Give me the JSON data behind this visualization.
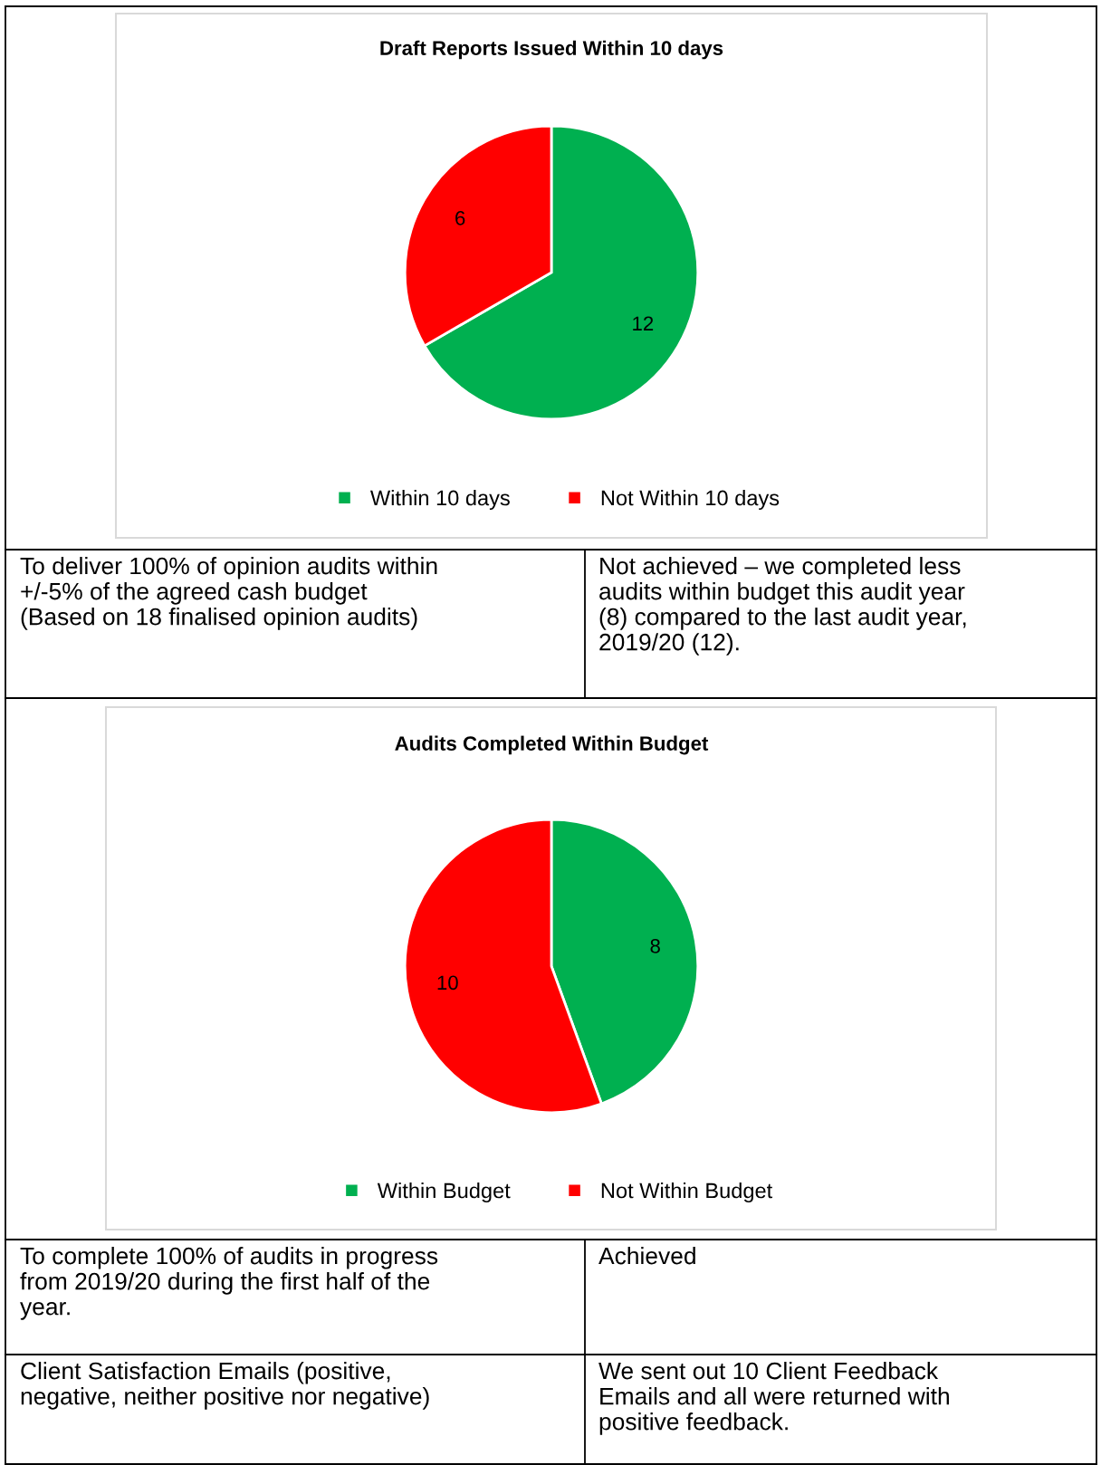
{
  "chart_data": [
    {
      "type": "pie",
      "title": "Draft Reports Issued Within 10 days",
      "categories": [
        "Within 10 days",
        "Not Within 10 days"
      ],
      "values": [
        12,
        6
      ],
      "colors": [
        "#00b050",
        "#ff0000"
      ],
      "data_labels": true,
      "legend": "bottom"
    },
    {
      "type": "other",
      "annotations": [
        "To deliver 100% of opinion audits within\n+/-5% of the agreed cash budget\n(Based on 18 finalised opinion audits)",
        "Not achieved – we completed less\naudits within budget this audit year\n(8) compared to the last audit year,\n2019/20 (12)."
      ]
    },
    {
      "type": "pie",
      "title": "Audits Completed Within Budget",
      "categories": [
        "Within Budget",
        "Not Within Budget"
      ],
      "values": [
        8,
        10
      ],
      "colors": [
        "#00b050",
        "#ff0000"
      ],
      "data_labels": true,
      "legend": "bottom"
    },
    {
      "type": "other",
      "annotations": [
        "To complete 100% of audits in progress\nfrom 2019/20 during the first half of the\nyear.",
        "Achieved"
      ]
    },
    {
      "type": "other",
      "annotations": [
        "Client Satisfaction Emails (positive,\nnegative, neither positive nor negative)",
        "We sent out 10 Client Feedback\nEmails and all were returned with\npositive feedback."
      ]
    }
  ]
}
